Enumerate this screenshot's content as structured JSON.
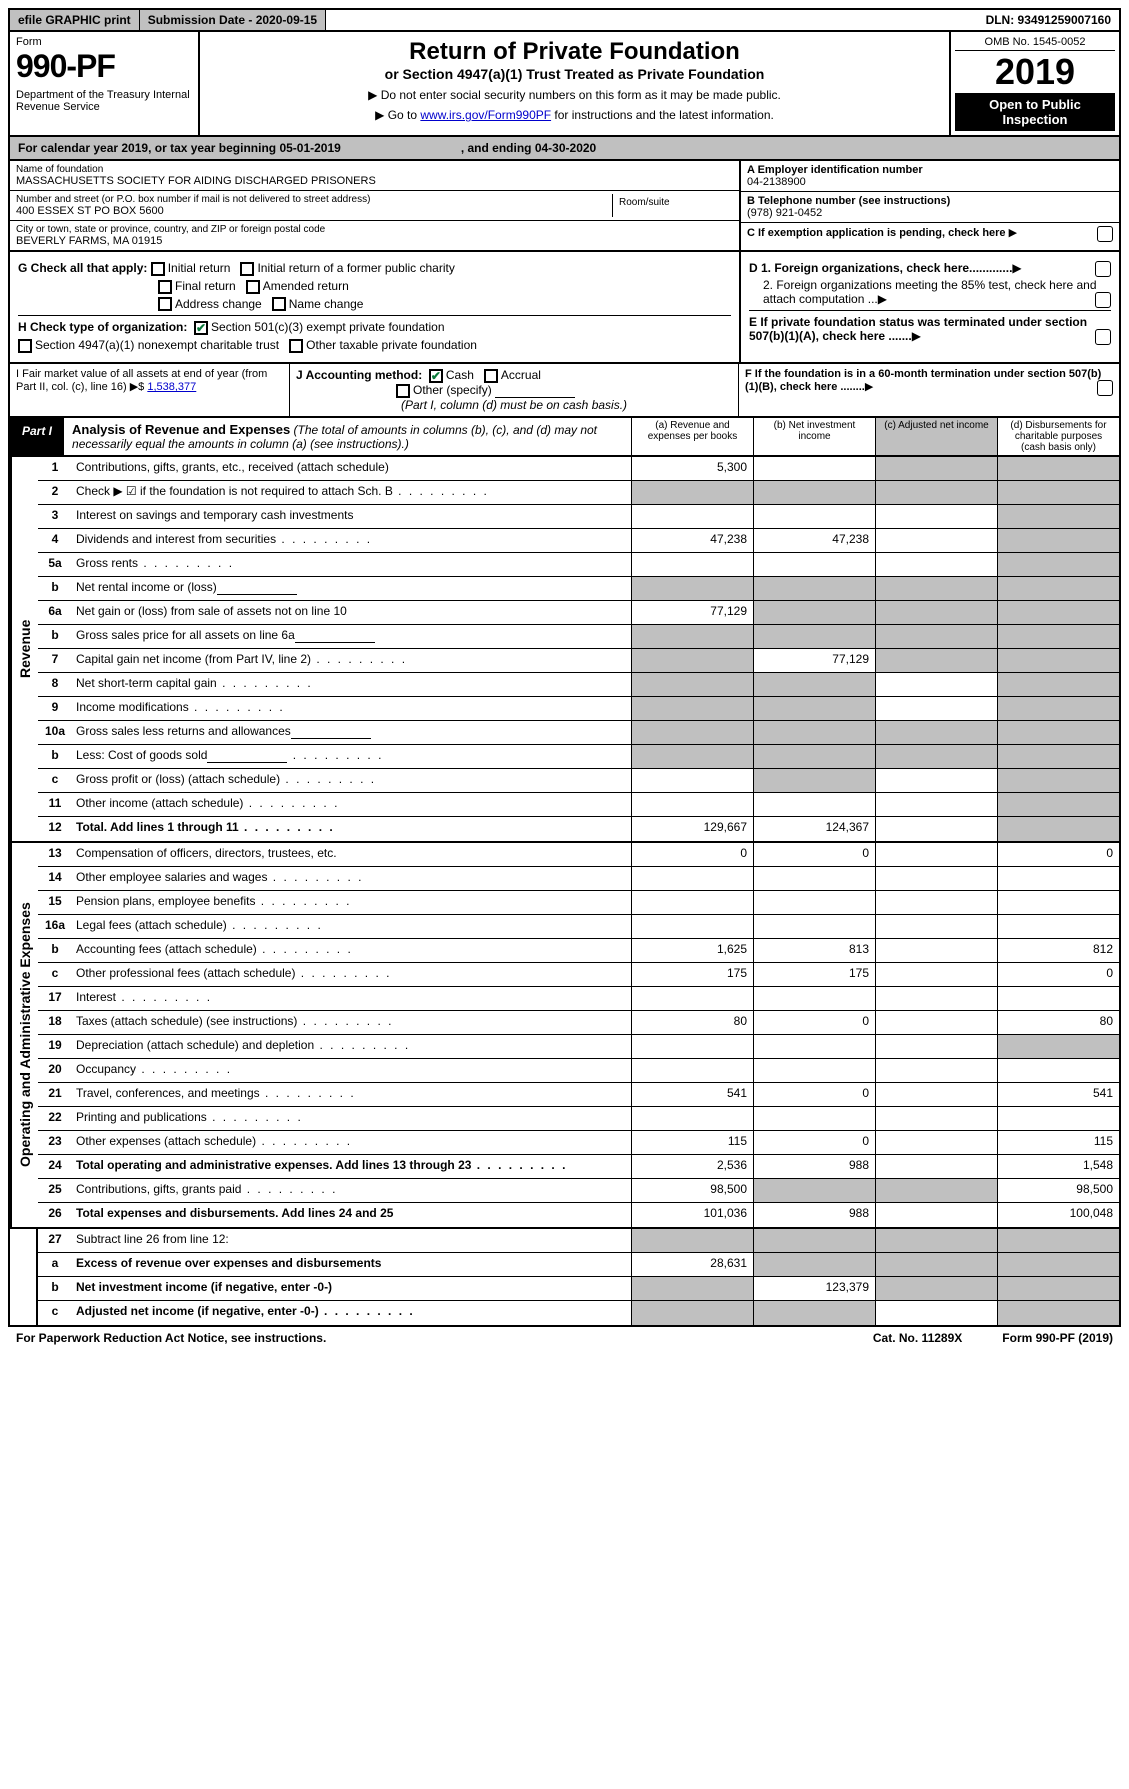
{
  "topbar": {
    "efile": "efile GRAPHIC print",
    "sub_label": "Submission Date - 2020-09-15",
    "dln": "DLN: 93491259007160"
  },
  "header": {
    "form_label": "Form",
    "form_num": "990-PF",
    "dept": "Department of the Treasury\nInternal Revenue Service",
    "title": "Return of Private Foundation",
    "subtitle": "or Section 4947(a)(1) Trust Treated as Private Foundation",
    "note1": "▶ Do not enter social security numbers on this form as it may be made public.",
    "note2_pre": "▶ Go to ",
    "note2_link": "www.irs.gov/Form990PF",
    "note2_post": " for instructions and the latest information.",
    "omb": "OMB No. 1545-0052",
    "year": "2019",
    "open": "Open to Public Inspection"
  },
  "cal": {
    "pre": "For calendar year 2019, or tax year beginning 05-01-2019",
    "mid": ", and ending 04-30-2020"
  },
  "info": {
    "name_label": "Name of foundation",
    "name": "MASSACHUSETTS SOCIETY FOR AIDING DISCHARGED PRISONERS",
    "addr_label": "Number and street (or P.O. box number if mail is not delivered to street address)",
    "addr": "400 ESSEX ST PO BOX 5600",
    "room_label": "Room/suite",
    "city_label": "City or town, state or province, country, and ZIP or foreign postal code",
    "city": "BEVERLY FARMS, MA  01915",
    "a_label": "A Employer identification number",
    "a_val": "04-2138900",
    "b_label": "B Telephone number (see instructions)",
    "b_val": "(978) 921-0452",
    "c_label": "C If exemption application is pending, check here",
    "d1": "D 1. Foreign organizations, check here.............",
    "d2": "2. Foreign organizations meeting the 85% test, check here and attach computation ...",
    "e": "E  If private foundation status was terminated under section 507(b)(1)(A), check here .......",
    "f": "F  If the foundation is in a 60-month termination under section 507(b)(1)(B), check here ........"
  },
  "g": {
    "label": "G Check all that apply:",
    "opts": [
      "Initial return",
      "Initial return of a former public charity",
      "Final return",
      "Amended return",
      "Address change",
      "Name change"
    ]
  },
  "h": {
    "label": "H Check type of organization:",
    "opt1": "Section 501(c)(3) exempt private foundation",
    "opt2": "Section 4947(a)(1) nonexempt charitable trust",
    "opt3": "Other taxable private foundation"
  },
  "i": {
    "label": "I Fair market value of all assets at end of year (from Part II, col. (c), line 16) ▶$",
    "val": "1,538,377"
  },
  "j": {
    "label": "J Accounting method:",
    "cash": "Cash",
    "accrual": "Accrual",
    "other": "Other (specify)",
    "note": "(Part I, column (d) must be on cash basis.)"
  },
  "part1": {
    "tab": "Part I",
    "title": "Analysis of Revenue and Expenses",
    "paren": " (The total of amounts in columns (b), (c), and (d) may not necessarily equal the amounts in column (a) (see instructions).)",
    "cols": {
      "a": "(a)   Revenue and expenses per books",
      "b": "(b)  Net investment income",
      "c": "(c)  Adjusted net income",
      "d": "(d)  Disbursements for charitable purposes (cash basis only)"
    }
  },
  "revenue_label": "Revenue",
  "expenses_label": "Operating and Administrative Expenses",
  "rows": [
    {
      "n": "1",
      "d": "Contributions, gifts, grants, etc., received (attach schedule)",
      "a": "5,300",
      "shade_cd": true
    },
    {
      "n": "2",
      "d": "Check ▶ ☑ if the foundation is not required to attach Sch. B",
      "dots": true,
      "shade_all": true,
      "bold_not": true
    },
    {
      "n": "3",
      "d": "Interest on savings and temporary cash investments",
      "a": "",
      "b": "",
      "c": "",
      "shade_d": true
    },
    {
      "n": "4",
      "d": "Dividends and interest from securities",
      "dots": true,
      "a": "47,238",
      "b": "47,238",
      "c": "",
      "shade_d": true
    },
    {
      "n": "5a",
      "d": "Gross rents",
      "dots": true,
      "a": "",
      "b": "",
      "c": "",
      "shade_d": true
    },
    {
      "n": "b",
      "d": "Net rental income or (loss)",
      "box": true,
      "shade_all": true
    },
    {
      "n": "6a",
      "d": "Net gain or (loss) from sale of assets not on line 10",
      "a": "77,129",
      "shade_bcd": true
    },
    {
      "n": "b",
      "d": "Gross sales price for all assets on line 6a",
      "box": true,
      "shade_all": true
    },
    {
      "n": "7",
      "d": "Capital gain net income (from Part IV, line 2)",
      "dots": true,
      "shade_a": true,
      "b": "77,129",
      "shade_cd": true
    },
    {
      "n": "8",
      "d": "Net short-term capital gain",
      "dots": true,
      "shade_ab": true,
      "c": "",
      "shade_d": true
    },
    {
      "n": "9",
      "d": "Income modifications",
      "dots": true,
      "shade_ab": true,
      "c": "",
      "shade_d": true
    },
    {
      "n": "10a",
      "d": "Gross sales less returns and allowances",
      "box": true,
      "shade_all": true
    },
    {
      "n": "b",
      "d": "Less: Cost of goods sold",
      "dots": true,
      "box": true,
      "shade_all": true
    },
    {
      "n": "c",
      "d": "Gross profit or (loss) (attach schedule)",
      "dots": true,
      "a": "",
      "shade_b": true,
      "c": "",
      "shade_d": true
    },
    {
      "n": "11",
      "d": "Other income (attach schedule)",
      "dots": true,
      "a": "",
      "b": "",
      "c": "",
      "shade_d": true
    },
    {
      "n": "12",
      "d": "Total. Add lines 1 through 11",
      "dots": true,
      "bold": true,
      "a": "129,667",
      "b": "124,367",
      "c": "",
      "shade_d": true
    }
  ],
  "exp_rows": [
    {
      "n": "13",
      "d": "Compensation of officers, directors, trustees, etc.",
      "a": "0",
      "b": "0",
      "c": "",
      "dv": "0"
    },
    {
      "n": "14",
      "d": "Other employee salaries and wages",
      "dots": true
    },
    {
      "n": "15",
      "d": "Pension plans, employee benefits",
      "dots": true
    },
    {
      "n": "16a",
      "d": "Legal fees (attach schedule)",
      "dots": true
    },
    {
      "n": "b",
      "d": "Accounting fees (attach schedule)",
      "dots": true,
      "a": "1,625",
      "b": "813",
      "c": "",
      "dv": "812"
    },
    {
      "n": "c",
      "d": "Other professional fees (attach schedule)",
      "dots": true,
      "a": "175",
      "b": "175",
      "c": "",
      "dv": "0"
    },
    {
      "n": "17",
      "d": "Interest",
      "dots": true
    },
    {
      "n": "18",
      "d": "Taxes (attach schedule) (see instructions)",
      "dots": true,
      "a": "80",
      "b": "0",
      "c": "",
      "dv": "80"
    },
    {
      "n": "19",
      "d": "Depreciation (attach schedule) and depletion",
      "dots": true,
      "shade_d": true
    },
    {
      "n": "20",
      "d": "Occupancy",
      "dots": true
    },
    {
      "n": "21",
      "d": "Travel, conferences, and meetings",
      "dots": true,
      "a": "541",
      "b": "0",
      "c": "",
      "dv": "541"
    },
    {
      "n": "22",
      "d": "Printing and publications",
      "dots": true
    },
    {
      "n": "23",
      "d": "Other expenses (attach schedule)",
      "dots": true,
      "a": "115",
      "b": "0",
      "c": "",
      "dv": "115"
    },
    {
      "n": "24",
      "d": "Total operating and administrative expenses. Add lines 13 through 23",
      "dots": true,
      "bold": true,
      "a": "2,536",
      "b": "988",
      "c": "",
      "dv": "1,548"
    },
    {
      "n": "25",
      "d": "Contributions, gifts, grants paid",
      "dots": true,
      "a": "98,500",
      "shade_bc": true,
      "dv": "98,500"
    },
    {
      "n": "26",
      "d": "Total expenses and disbursements. Add lines 24 and 25",
      "bold": true,
      "a": "101,036",
      "b": "988",
      "c": "",
      "dv": "100,048"
    }
  ],
  "line27": [
    {
      "n": "27",
      "d": "Subtract line 26 from line 12:",
      "shade_all": true
    },
    {
      "n": "a",
      "d": "Excess of revenue over expenses and disbursements",
      "bold": true,
      "a": "28,631",
      "shade_bcd": true
    },
    {
      "n": "b",
      "d": "Net investment income (if negative, enter -0-)",
      "bold": true,
      "shade_a": true,
      "b": "123,379",
      "shade_cd": true
    },
    {
      "n": "c",
      "d": "Adjusted net income (if negative, enter -0-)",
      "bold": true,
      "dots": true,
      "shade_ab": true,
      "c": "",
      "shade_d": true
    }
  ],
  "footer": {
    "left": "For Paperwork Reduction Act Notice, see instructions.",
    "mid": "Cat. No. 11289X",
    "right": "Form 990-PF (2019)"
  },
  "colors": {
    "shade": "#c0c0c0",
    "link": "#0000cc",
    "check": "#0a7a3a"
  }
}
